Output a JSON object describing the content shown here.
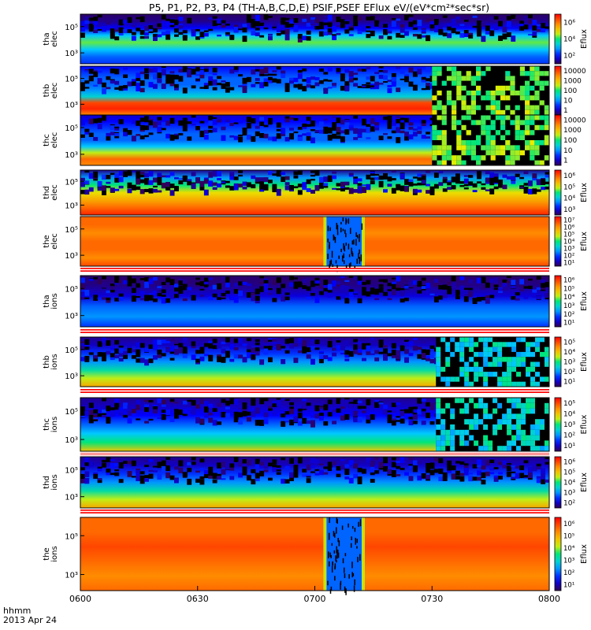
{
  "title": "P5, P1, P2, P3, P4 (TH-A,B,C,D,E) PSIF,PSEF EFlux eV/(eV*cm²*sec*sr)",
  "colors": {
    "background": "#ffffff",
    "separator_red": "#ff0000"
  },
  "chart_data": [
    {
      "type": "heatmap",
      "ylabel": "tha elec",
      "y_ticks": [
        "10⁵",
        "10³"
      ],
      "cbar_label": "Eflux",
      "cbar_ticks": [
        "10⁶",
        "10⁴",
        "10²"
      ],
      "log_scale": true,
      "style": "elec_a",
      "profile": [
        0.02,
        0.05,
        0.15,
        0.35,
        0.55,
        0.35,
        0.25,
        0.2
      ]
    },
    {
      "type": "heatmap",
      "ylabel": "thb elec",
      "y_ticks": [
        "10⁵",
        "10³"
      ],
      "cbar_label": "",
      "cbar_ticks": [
        "10000",
        "1000",
        "100",
        "10",
        "1"
      ],
      "log_scale": true,
      "style": "elec_bc",
      "noise_start": "0730",
      "profile": [
        0.15,
        0.2,
        0.25,
        0.25,
        0.3,
        0.4,
        0.9,
        0.95,
        0.8
      ]
    },
    {
      "type": "heatmap",
      "ylabel": "thc elec",
      "y_ticks": [
        "10⁵",
        "10³"
      ],
      "cbar_label": "",
      "cbar_ticks": [
        "10000",
        "1000",
        "100",
        "10",
        "1"
      ],
      "log_scale": true,
      "style": "elec_bc",
      "noise_start": "0730",
      "profile": [
        0.1,
        0.15,
        0.2,
        0.25,
        0.25,
        0.35,
        0.6,
        0.85,
        0.8
      ]
    },
    {
      "type": "heatmap",
      "ylabel": "thd elec",
      "y_ticks": [
        "10⁵",
        "10³"
      ],
      "cbar_label": "Eflux",
      "cbar_ticks": [
        "10⁶",
        "10⁵",
        "10⁴",
        "10³"
      ],
      "log_scale": true,
      "style": "elec_d",
      "profile": [
        0.05,
        0.3,
        0.5,
        0.65,
        0.75,
        0.85,
        0.95
      ]
    },
    {
      "type": "heatmap",
      "ylabel": "the elec",
      "y_ticks": [
        "10⁵",
        "10³"
      ],
      "cbar_label": "Eflux",
      "cbar_ticks": [
        "10⁷",
        "10⁶",
        "10⁵",
        "10⁴",
        "10³",
        "10²",
        "10¹"
      ],
      "log_scale": true,
      "style": "elec_e",
      "gap": [
        "0703",
        "0712"
      ],
      "profile": [
        0.85,
        0.85,
        0.8,
        0.85,
        0.85,
        0.8,
        0.9
      ]
    },
    {
      "type": "heatmap",
      "ylabel": "tha ions",
      "y_ticks": [
        "10⁵",
        "10³"
      ],
      "cbar_label": "Eflux",
      "cbar_ticks": [
        "10⁶",
        "10⁵",
        "10⁴",
        "10³",
        "10²",
        "10¹"
      ],
      "log_scale": true,
      "style": "ion_a",
      "profile": [
        0.02,
        0.05,
        0.12,
        0.25,
        0.3,
        0.2
      ]
    },
    {
      "type": "heatmap",
      "ylabel": "thb ions",
      "y_ticks": [
        "10⁵",
        "10³"
      ],
      "cbar_label": "Eflux",
      "cbar_ticks": [
        "10⁵",
        "10⁴",
        "10³",
        "10²",
        "10¹"
      ],
      "log_scale": true,
      "style": "ion_bc",
      "noise_start": "0731",
      "profile": [
        0.05,
        0.1,
        0.2,
        0.3,
        0.45,
        0.6,
        0.75
      ]
    },
    {
      "type": "heatmap",
      "ylabel": "thc ions",
      "y_ticks": [
        "10⁵",
        "10³"
      ],
      "cbar_label": "Eflux",
      "cbar_ticks": [
        "10⁵",
        "10⁴",
        "10³",
        "10²",
        "10¹"
      ],
      "log_scale": true,
      "style": "ion_bc",
      "noise_start": "0731",
      "profile": [
        0.05,
        0.1,
        0.15,
        0.25,
        0.35,
        0.5,
        0.7
      ]
    },
    {
      "type": "heatmap",
      "ylabel": "thd ions",
      "y_ticks": [
        "10⁵",
        "10³"
      ],
      "cbar_label": "Eflux",
      "cbar_ticks": [
        "10⁶",
        "10⁵",
        "10⁴",
        "10³",
        "10²"
      ],
      "log_scale": true,
      "style": "ion_d",
      "profile": [
        0.05,
        0.1,
        0.2,
        0.3,
        0.45,
        0.6,
        0.75
      ]
    },
    {
      "type": "heatmap",
      "ylabel": "the ions",
      "y_ticks": [
        "10⁵",
        "10³"
      ],
      "cbar_label": "Eflux",
      "cbar_ticks": [
        "10⁶",
        "10⁵",
        "10⁴",
        "10³",
        "10²",
        "10¹"
      ],
      "log_scale": true,
      "style": "ion_e",
      "gap": [
        "0703",
        "0712"
      ],
      "profile": [
        0.85,
        0.85,
        0.9,
        0.85,
        0.8,
        0.85
      ]
    }
  ],
  "x_axis": {
    "ticks": [
      "0600",
      "0630",
      "0700",
      "0730",
      "0800"
    ],
    "range": [
      "0600",
      "0800"
    ],
    "label": "hhmm",
    "date": "2013 Apr 24"
  }
}
